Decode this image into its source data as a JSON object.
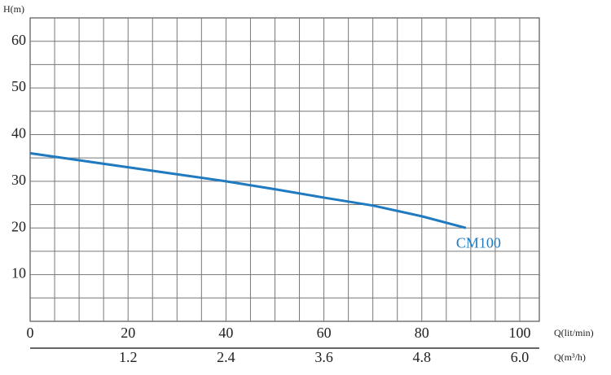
{
  "chart_data": {
    "type": "line",
    "ylabel": "H(m)",
    "xlabel": "Q(lit/min)",
    "x2label": "Q(m³/h)",
    "x": [
      0,
      10,
      20,
      30,
      40,
      50,
      60,
      70,
      80,
      89
    ],
    "series": [
      {
        "name": "CM100",
        "color": "#1f7ac0",
        "values": [
          36,
          34.5,
          33,
          31.5,
          30,
          28.3,
          26.5,
          24.8,
          22.5,
          20
        ]
      }
    ],
    "xlim": [
      0,
      104
    ],
    "xticks": [
      0,
      20,
      40,
      60,
      80,
      100
    ],
    "x2lim": [
      0,
      6.24
    ],
    "x2ticks": [
      1.2,
      2.4,
      3.6,
      4.8,
      {
        "value": 6,
        "label": "6.0"
      }
    ],
    "ylim": [
      0,
      65
    ],
    "yticks": [
      10,
      20,
      30,
      40,
      50,
      60
    ],
    "xgrid": [
      5,
      10,
      15,
      20,
      25,
      30,
      35,
      40,
      45,
      50,
      55,
      60,
      65,
      70,
      75,
      80,
      85,
      90,
      95,
      100
    ],
    "ygrid": [
      5,
      10,
      15,
      20,
      25,
      30,
      35,
      40,
      45,
      50,
      55,
      60
    ],
    "grid": true
  }
}
